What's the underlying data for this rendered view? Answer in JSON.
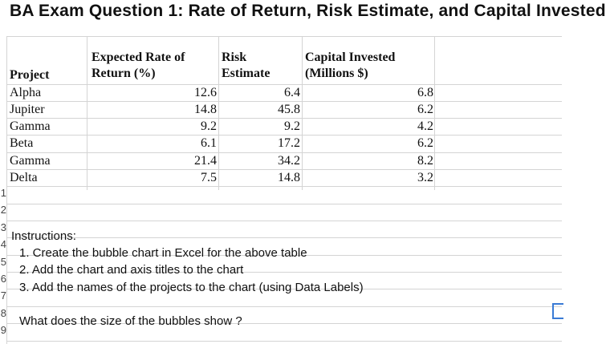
{
  "title": "BA Exam Question 1: Rate of Return, Risk Estimate, and Capital Invested",
  "row_numbers": [
    "1",
    "2",
    "3",
    "4",
    "5",
    "6",
    "7",
    "8",
    "9"
  ],
  "table": {
    "headers": {
      "project": "Project",
      "rate_line1": "Expected Rate of",
      "rate_line2": "Return (%)",
      "risk_line1": "Risk",
      "risk_line2": "Estimate",
      "capital_line1": "Capital Invested",
      "capital_line2": "(Millions $)"
    },
    "rows": [
      {
        "project": "Alpha",
        "rate": "12.6",
        "risk": "6.4",
        "capital": "6.8"
      },
      {
        "project": "Jupiter",
        "rate": "14.8",
        "risk": "45.8",
        "capital": "6.2"
      },
      {
        "project": "Gamma",
        "rate": "9.2",
        "risk": "9.2",
        "capital": "4.2"
      },
      {
        "project": "Beta",
        "rate": "6.1",
        "risk": "17.2",
        "capital": "6.2"
      },
      {
        "project": "Gamma",
        "rate": "21.4",
        "risk": "34.2",
        "capital": "8.2"
      },
      {
        "project": "Delta",
        "rate": "7.5",
        "risk": "14.8",
        "capital": "3.2"
      }
    ]
  },
  "instructions": {
    "heading": "Instructions:",
    "items": [
      "1. Create the bubble chart in Excel for the above table",
      "2. Add the chart and axis titles to the chart",
      "3. Add the names of the projects to the chart (using Data Labels)"
    ],
    "question": "What does the size of the bubbles show ?"
  }
}
